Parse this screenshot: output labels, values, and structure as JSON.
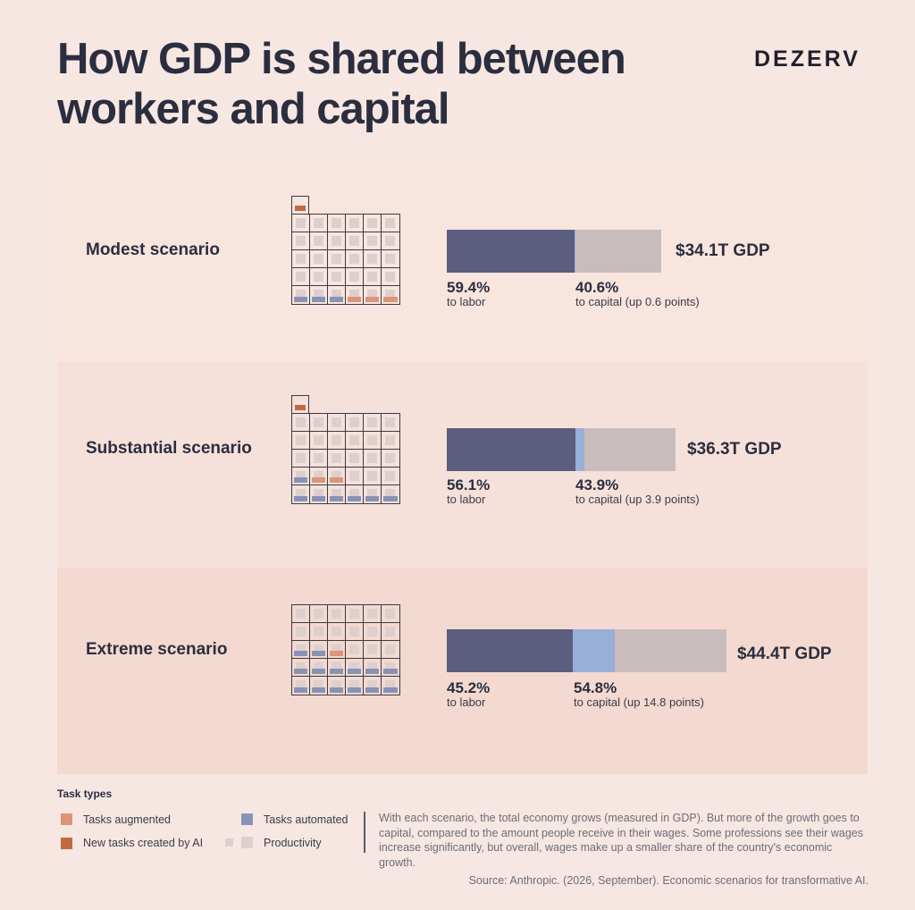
{
  "title": {
    "line1": "How GDP is shared between",
    "line2": "workers and capital"
  },
  "brand": "DEZERV",
  "colors": {
    "labor": "#5c5e7f",
    "capital_gain": "#98afd8",
    "capital_base": "#c9bcbc",
    "tasks_augmented": "#de9479",
    "new_tasks": "#c06a40",
    "tasks_automated": "#8993b5",
    "productivity": "#ddcfcd"
  },
  "chart_data": {
    "type": "bar",
    "stacked": true,
    "orientation": "horizontal",
    "categories": [
      "Modest scenario",
      "Substantial scenario",
      "Extreme scenario"
    ],
    "series": [
      {
        "name": "to labor",
        "values": [
          59.4,
          56.1,
          45.2
        ]
      },
      {
        "name": "to capital",
        "values": [
          40.6,
          43.9,
          54.8
        ]
      }
    ],
    "capital_increase_points": [
      0.6,
      3.9,
      14.8
    ],
    "gdp_trillions": [
      34.1,
      36.3,
      44.4
    ],
    "scenarios": [
      {
        "name": "Modest scenario",
        "gdp_label": "$34.1T GDP",
        "gdp_value": 34.1,
        "labor_pct": 59.4,
        "capital_pct": 40.6,
        "capital_up_points": 0.6,
        "labor_pct_label": "59.4%",
        "labor_sub": "to labor",
        "capital_pct_label": "40.6%",
        "capital_sub": "to capital (up 0.6 points)",
        "extra_cell": "new",
        "grid": [
          [
            "P",
            "P",
            "P",
            "P",
            "P",
            "P"
          ],
          [
            "P",
            "P",
            "P",
            "P",
            "P",
            "P"
          ],
          [
            "P",
            "P",
            "P",
            "P",
            "P",
            "P"
          ],
          [
            "P",
            "P",
            "P",
            "P",
            "P",
            "P"
          ],
          [
            "A",
            "A",
            "A",
            "G",
            "G",
            "G"
          ]
        ]
      },
      {
        "name": "Substantial scenario",
        "gdp_label": "$36.3T GDP",
        "gdp_value": 36.3,
        "labor_pct": 56.1,
        "capital_pct": 43.9,
        "capital_up_points": 3.9,
        "labor_pct_label": "56.1%",
        "labor_sub": "to labor",
        "capital_pct_label": "43.9%",
        "capital_sub": "to capital (up 3.9 points)",
        "extra_cell": "new",
        "grid": [
          [
            "P",
            "P",
            "P",
            "P",
            "P",
            "P"
          ],
          [
            "P",
            "P",
            "P",
            "P",
            "P",
            "P"
          ],
          [
            "P",
            "P",
            "P",
            "P",
            "P",
            "P"
          ],
          [
            "A",
            "G",
            "G",
            "P",
            "P",
            "P"
          ],
          [
            "A",
            "A",
            "A",
            "A",
            "A",
            "A"
          ]
        ]
      },
      {
        "name": "Extreme scenario",
        "gdp_label": "$44.4T GDP",
        "gdp_value": 44.4,
        "labor_pct": 45.2,
        "capital_pct": 54.8,
        "capital_up_points": 14.8,
        "labor_pct_label": "45.2%",
        "labor_sub": "to labor",
        "capital_pct_label": "54.8%",
        "capital_sub": "to capital (up 14.8 points)",
        "extra_cell": null,
        "grid": [
          [
            "P",
            "P",
            "P",
            "P",
            "P",
            "P"
          ],
          [
            "P",
            "P",
            "P",
            "P",
            "P",
            "P"
          ],
          [
            "A",
            "A",
            "G",
            "P",
            "P",
            "P"
          ],
          [
            "A",
            "A",
            "A",
            "A",
            "A",
            "A"
          ],
          [
            "A",
            "A",
            "A",
            "A",
            "A",
            "A"
          ]
        ]
      }
    ]
  },
  "legend": {
    "title": "Task types",
    "items": [
      {
        "label": "Tasks augmented",
        "color": "#de9479"
      },
      {
        "label": "New tasks created by AI",
        "color": "#c06a40"
      },
      {
        "label": "Tasks automated",
        "color": "#8993b5"
      },
      {
        "label": "Productivity",
        "color": "#ddcfcd"
      }
    ]
  },
  "note": "With each scenario, the total economy grows (measured in GDP). But more of the growth goes to capital, compared to the amount people receive in their wages. Some professions see their wages increase significantly, but overall, wages make up a smaller share of the country's economic growth.",
  "source": "Source: Anthropic. (2026, September). Economic scenarios for transformative AI."
}
